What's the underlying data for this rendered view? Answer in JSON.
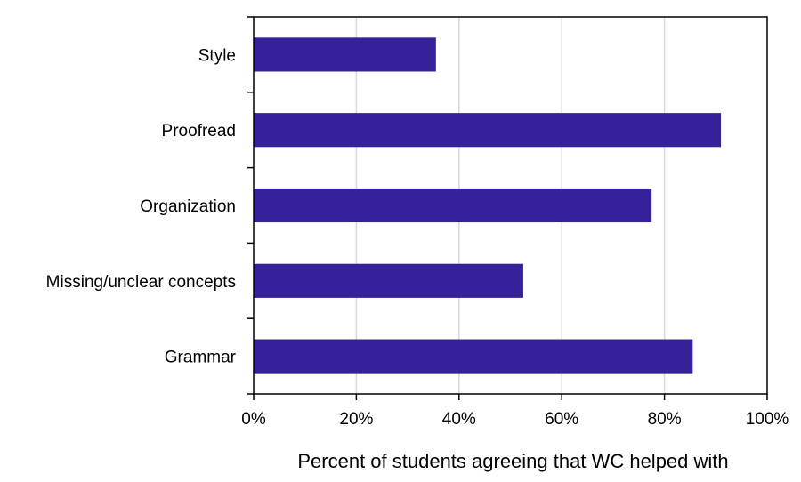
{
  "chart_data": {
    "type": "bar",
    "orientation": "horizontal",
    "categories": [
      "Style",
      "Proofread",
      "Organization",
      "Missing/unclear concepts",
      "Grammar"
    ],
    "values": [
      35.5,
      91,
      77.5,
      52.5,
      85.5
    ],
    "value_unit": "%",
    "xlabel": "Percent of students agreeing that WC helped with",
    "ylabel": "",
    "xlim": [
      0,
      100
    ],
    "x_ticks": [
      "0%",
      "20%",
      "40%",
      "60%",
      "80%",
      "100%"
    ],
    "grid": "vertical",
    "legend": "none",
    "bar_color": "#36219a",
    "grid_color": "#d9d9d9"
  }
}
